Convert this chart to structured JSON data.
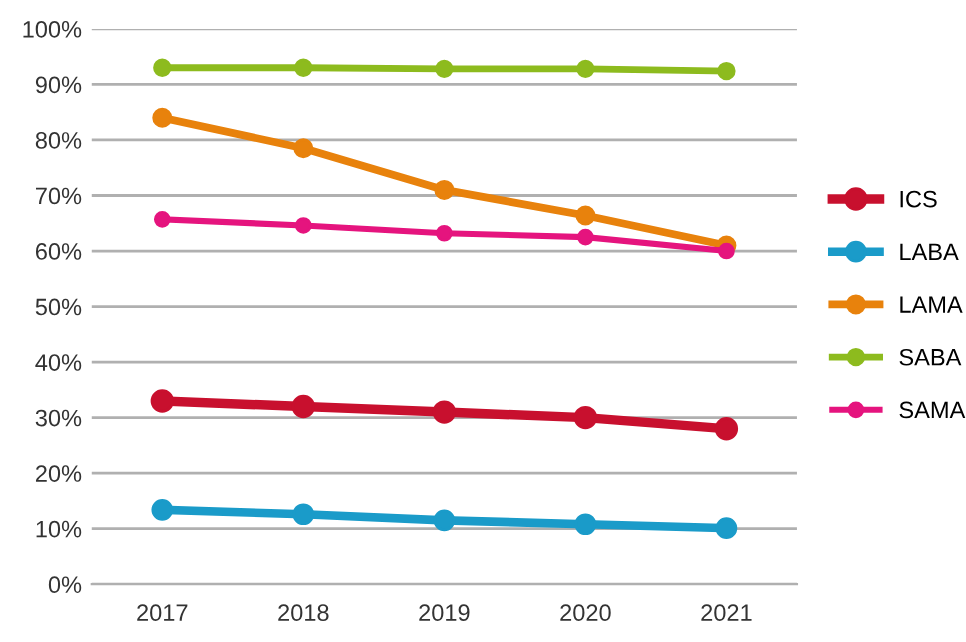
{
  "chart_data": {
    "type": "line",
    "categories": [
      "2017",
      "2018",
      "2019",
      "2020",
      "2021"
    ],
    "series": [
      {
        "name": "ICS",
        "color": "#c8102e",
        "values": [
          33,
          32,
          31,
          30,
          28
        ]
      },
      {
        "name": "LABA",
        "color": "#1a9bc9",
        "values": [
          13.4,
          12.6,
          11.5,
          10.8,
          10.1
        ]
      },
      {
        "name": "LAMA",
        "color": "#e8820c",
        "values": [
          84,
          78.5,
          71,
          66.4,
          61
        ]
      },
      {
        "name": "SABA",
        "color": "#8dbb1e",
        "values": [
          93,
          93,
          92.8,
          92.8,
          92.4
        ]
      },
      {
        "name": "SAMA",
        "color": "#e5147e",
        "values": [
          65.7,
          64.6,
          63.2,
          62.5,
          60
        ]
      }
    ],
    "ylim": [
      0,
      100
    ],
    "yticks": [
      {
        "value": 0,
        "label": "0%"
      },
      {
        "value": 10,
        "label": "10%"
      },
      {
        "value": 20,
        "label": "20%"
      },
      {
        "value": 30,
        "label": "30%"
      },
      {
        "value": 40,
        "label": "40%"
      },
      {
        "value": 50,
        "label": "50%"
      },
      {
        "value": 60,
        "label": "60%"
      },
      {
        "value": 70,
        "label": "70%"
      },
      {
        "value": 80,
        "label": "80%"
      },
      {
        "value": 90,
        "label": "90%"
      },
      {
        "value": 100,
        "label": "100%"
      }
    ],
    "grid": "y",
    "legend": "right",
    "marker": "circle",
    "line_style": "solid"
  }
}
